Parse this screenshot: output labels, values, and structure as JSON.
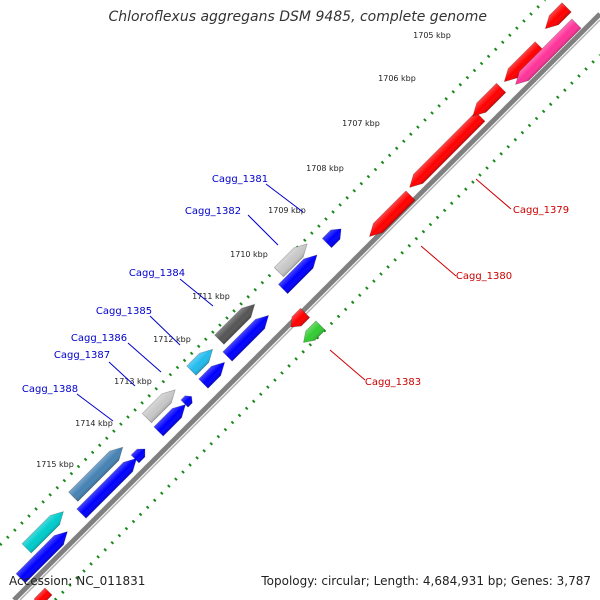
{
  "title": "Chloroflexus aggregans DSM 9485, complete genome",
  "footer": {
    "accession": "Accession: NC_011831",
    "summary": "Topology: circular; Length: 4,684,931 bp; Genes: 3,787"
  },
  "scale_labels": [
    "1705 kbp",
    "1706 kbp",
    "1707 kbp",
    "1708 kbp",
    "1709 kbp",
    "1710 kbp",
    "1711 kbp",
    "1712 kbp",
    "1713 kbp",
    "1714 kbp",
    "1715 kbp"
  ],
  "gene_labels": [
    "Cagg_1381",
    "Cagg_1382",
    "Cagg_1384",
    "Cagg_1385",
    "Cagg_1386",
    "Cagg_1387",
    "Cagg_1388",
    "Cagg_1379",
    "Cagg_1380",
    "Cagg_1383"
  ],
  "colors": {
    "backbone": "#808080",
    "dots": "#1a8a1a",
    "forward_cds": "#0000ff",
    "reverse_cds": "#ff0000",
    "label_blue": "#0000cc",
    "label_red": "#cc0000",
    "magenta": "#ff3399",
    "green": "#33cc33",
    "cyan": "#00cccc",
    "sky": "#22bbee",
    "steel": "#4682b4",
    "light_gray": "#c8c8c8",
    "dark_gray": "#555555"
  }
}
